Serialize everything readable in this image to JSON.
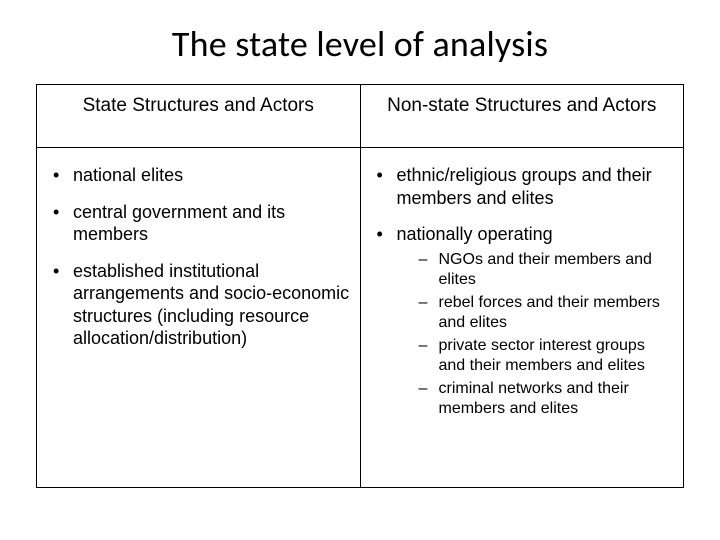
{
  "title": "The state level of analysis",
  "table": {
    "headers": {
      "left": "State Structures and Actors",
      "right": "Non-state Structures and Actors"
    },
    "left": {
      "items": [
        "national elites",
        "central government and its members",
        "established institutional arrangements and socio-economic structures (including resource allocation/distribution)"
      ]
    },
    "right": {
      "items": [
        "ethnic/religious groups and their members and elites",
        "nationally operating"
      ],
      "sub": [
        "NGOs and their members and elites",
        "rebel forces and their members and elites",
        "private sector interest groups and their members and elites",
        "criminal networks and their members and elites"
      ]
    }
  },
  "style": {
    "background_color": "#ffffff",
    "text_color": "#000000",
    "border_color": "#000000",
    "title_fontsize": 36,
    "header_fontsize": 19,
    "body_fontsize": 18,
    "sub_fontsize": 16,
    "title_font": "Calibri",
    "body_font": "Verdana"
  }
}
